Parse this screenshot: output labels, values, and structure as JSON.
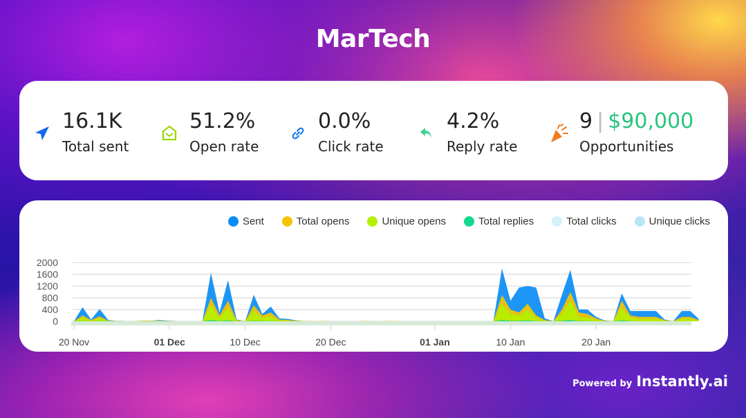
{
  "title": "MarTech",
  "stats": [
    {
      "value": "16.1K",
      "label": "Total sent",
      "icon": "paper-plane-icon",
      "color": "#1466f0"
    },
    {
      "value": "51.2%",
      "label": "Open rate",
      "icon": "open-envelope-icon",
      "color": "#9bd400"
    },
    {
      "value": "0.0%",
      "label": "Click rate",
      "icon": "link-icon",
      "color": "#1a7cf0"
    },
    {
      "value": "4.2%",
      "label": "Reply rate",
      "icon": "reply-icon",
      "color": "#3ccf8e"
    },
    {
      "value_count": "9",
      "separator": "|",
      "value_amount": "$90,000",
      "label": "Opportunities",
      "icon": "party-popper-icon",
      "color": "#f07c1a"
    }
  ],
  "footer": {
    "powered_by": "Powered by",
    "brand": "Instantly.ai"
  },
  "chart_data": {
    "type": "area",
    "start_date": "2023-11-20",
    "ylim": [
      0,
      2000
    ],
    "yticks": [
      0,
      400,
      800,
      1200,
      1600,
      2000
    ],
    "xticks": [
      {
        "label": "20 Nov",
        "day": 0,
        "bold": false
      },
      {
        "label": "01 Dec",
        "day": 11,
        "bold": true
      },
      {
        "label": "10 Dec",
        "day": 20,
        "bold": false
      },
      {
        "label": "20 Dec",
        "day": 30,
        "bold": false
      },
      {
        "label": "01 Jan",
        "day": 42,
        "bold": true
      },
      {
        "label": "10 Jan",
        "day": 51,
        "bold": false
      },
      {
        "label": "20 Jan",
        "day": 61,
        "bold": false
      }
    ],
    "legend_position": "top-right",
    "series": [
      {
        "name": "Sent",
        "color": "#0a8cf5",
        "values": [
          0,
          480,
          60,
          420,
          40,
          10,
          0,
          0,
          20,
          20,
          40,
          20,
          0,
          0,
          0,
          0,
          1650,
          300,
          1400,
          60,
          0,
          900,
          250,
          500,
          100,
          80,
          30,
          0,
          0,
          0,
          0,
          0,
          0,
          0,
          0,
          0,
          0,
          0,
          0,
          0,
          0,
          0,
          0,
          0,
          0,
          0,
          0,
          0,
          0,
          0,
          1800,
          700,
          1150,
          1200,
          1150,
          100,
          0,
          900,
          1750,
          400,
          400,
          150,
          30,
          0,
          950,
          350,
          350,
          350,
          350,
          60,
          0,
          350,
          350,
          80
        ]
      },
      {
        "name": "Total opens",
        "color": "#f5c400",
        "values": [
          0,
          200,
          40,
          170,
          20,
          10,
          0,
          0,
          20,
          20,
          20,
          10,
          0,
          0,
          0,
          0,
          800,
          200,
          700,
          40,
          0,
          550,
          200,
          300,
          60,
          40,
          20,
          10,
          0,
          10,
          0,
          0,
          0,
          0,
          10,
          0,
          0,
          10,
          0,
          0,
          0,
          0,
          0,
          0,
          0,
          0,
          0,
          0,
          0,
          0,
          900,
          400,
          300,
          600,
          200,
          40,
          0,
          400,
          1000,
          300,
          250,
          100,
          20,
          0,
          700,
          200,
          150,
          150,
          150,
          40,
          0,
          150,
          150,
          40
        ]
      },
      {
        "name": "Unique opens",
        "color": "#b4f000",
        "values": [
          0,
          120,
          20,
          100,
          10,
          0,
          0,
          0,
          10,
          10,
          10,
          0,
          0,
          0,
          0,
          0,
          550,
          120,
          450,
          20,
          0,
          350,
          120,
          180,
          30,
          20,
          10,
          0,
          0,
          0,
          0,
          0,
          0,
          0,
          0,
          0,
          0,
          0,
          0,
          0,
          0,
          0,
          0,
          0,
          0,
          0,
          0,
          0,
          0,
          0,
          600,
          250,
          200,
          400,
          120,
          20,
          0,
          250,
          700,
          150,
          120,
          50,
          10,
          0,
          450,
          120,
          80,
          80,
          80,
          20,
          0,
          80,
          80,
          20
        ]
      },
      {
        "name": "Total replies",
        "color": "#12d98f",
        "values": [
          0,
          10,
          0,
          10,
          0,
          0,
          0,
          0,
          0,
          0,
          0,
          0,
          0,
          0,
          0,
          0,
          40,
          10,
          30,
          0,
          0,
          20,
          10,
          10,
          0,
          0,
          0,
          0,
          0,
          0,
          0,
          0,
          0,
          0,
          0,
          0,
          0,
          0,
          0,
          0,
          0,
          0,
          0,
          0,
          0,
          0,
          0,
          0,
          0,
          0,
          40,
          20,
          20,
          30,
          10,
          0,
          0,
          20,
          40,
          10,
          10,
          0,
          0,
          0,
          30,
          10,
          0,
          0,
          0,
          0,
          0,
          0,
          0,
          0
        ]
      },
      {
        "name": "Total clicks",
        "color": "#d4f0fb",
        "values": [
          0,
          0,
          0,
          0,
          0,
          0,
          0,
          0,
          0,
          0,
          0,
          0,
          0,
          0,
          0,
          0,
          0,
          0,
          0,
          0,
          0,
          0,
          0,
          0,
          0,
          0,
          0,
          0,
          0,
          0,
          0,
          0,
          0,
          0,
          0,
          0,
          0,
          0,
          0,
          0,
          0,
          0,
          0,
          0,
          0,
          0,
          0,
          0,
          0,
          0,
          0,
          0,
          0,
          0,
          0,
          0,
          0,
          0,
          0,
          0,
          0,
          0,
          0,
          0,
          0,
          0,
          0,
          0,
          0,
          0,
          0,
          0,
          0,
          0
        ]
      },
      {
        "name": "Unique clicks",
        "color": "#b8e5f6",
        "values": [
          0,
          0,
          0,
          0,
          0,
          0,
          0,
          0,
          0,
          0,
          0,
          0,
          0,
          0,
          0,
          0,
          0,
          0,
          0,
          0,
          0,
          0,
          0,
          0,
          0,
          0,
          0,
          0,
          0,
          0,
          0,
          0,
          0,
          0,
          0,
          0,
          0,
          0,
          0,
          0,
          0,
          0,
          0,
          0,
          0,
          0,
          0,
          0,
          0,
          0,
          0,
          0,
          0,
          0,
          0,
          0,
          0,
          0,
          0,
          0,
          0,
          0,
          0,
          0,
          0,
          0,
          0,
          0,
          0,
          0,
          0,
          0,
          0,
          0
        ]
      }
    ]
  }
}
